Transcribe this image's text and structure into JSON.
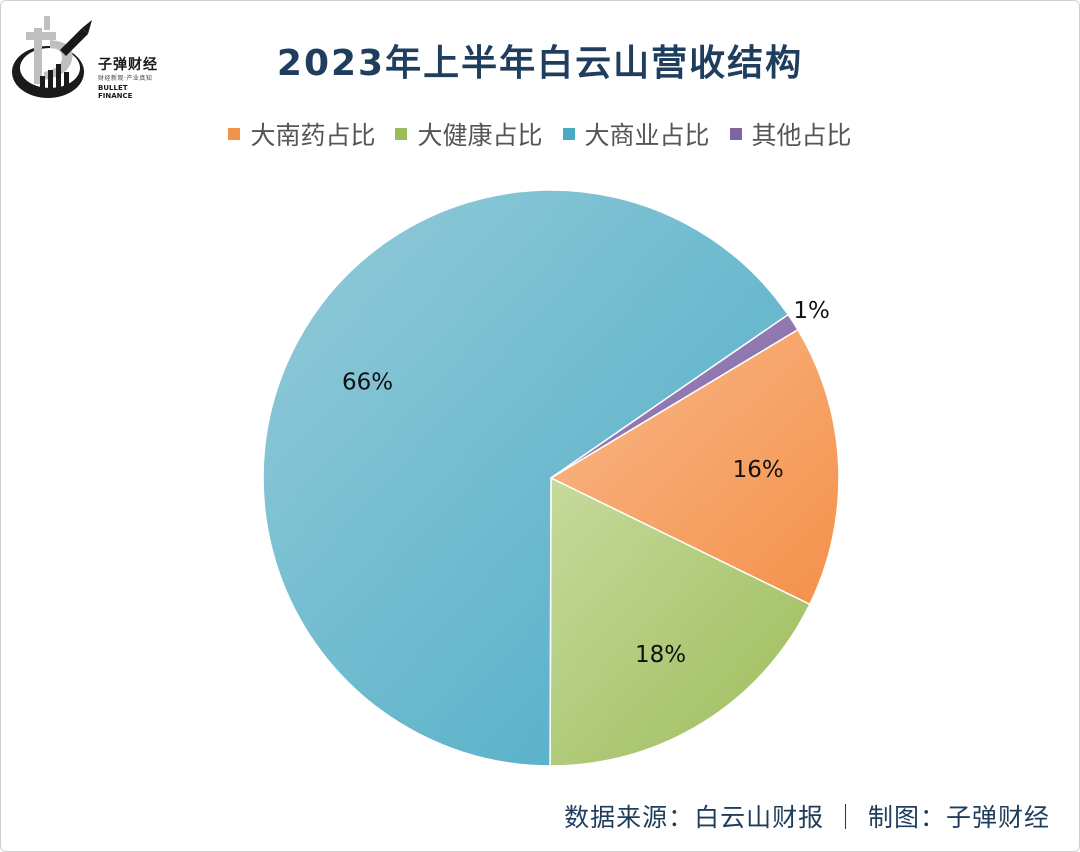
{
  "logo": {
    "name_cn": "子弹财经",
    "tagline": "财经新观·产业真知",
    "name_en": "BULLET FINANCE"
  },
  "footer": {
    "text": "数据来源：白云山财报  ｜  制图：子弹财经"
  },
  "chart_data": {
    "type": "pie",
    "title": "2023年上半年白云山营收结构",
    "legend_position": "top",
    "start_angle_deg": -31,
    "slices": [
      {
        "label": "大南药占比",
        "value": 16,
        "data_label": "16%",
        "color": "#f4914a",
        "color_light": "#f9b88a"
      },
      {
        "label": "大健康占比",
        "value": 18,
        "data_label": "18%",
        "color": "#9cbc59",
        "color_light": "#c6da9c"
      },
      {
        "label": "大商业占比",
        "value": 66,
        "data_label": "66%",
        "color": "#4babc6",
        "color_light": "#94cbd9"
      },
      {
        "label": "其他占比",
        "value": 1,
        "data_label": "1%",
        "color": "#8064a2",
        "color_light": "#a48cc0"
      }
    ]
  }
}
